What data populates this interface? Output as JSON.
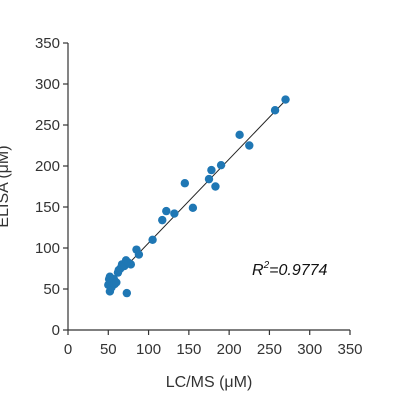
{
  "chart_data": {
    "type": "scatter",
    "xlabel": "LC/MS (μM)",
    "ylabel": "ELISA (μM)",
    "xlim": [
      0,
      350
    ],
    "ylim": [
      0,
      350
    ],
    "x_ticks": [
      "0",
      "50",
      "100",
      "150",
      "200",
      "250",
      "300",
      "350"
    ],
    "y_ticks": [
      "0",
      "50",
      "100",
      "150",
      "200",
      "250",
      "300",
      "350"
    ],
    "grid": false,
    "marker_color": "#1f77b4",
    "trendline": {
      "x": [
        50,
        270
      ],
      "y": [
        55,
        280
      ]
    },
    "annotation": {
      "prefix": "R",
      "superscript": "2",
      "text": "=0.9774"
    },
    "series": [
      {
        "x": [
          50,
          51,
          52,
          52,
          53,
          54,
          55,
          57,
          58,
          60,
          62,
          63,
          65,
          67,
          70,
          72,
          73,
          75,
          78,
          85,
          88,
          105,
          117,
          122,
          132,
          145,
          155,
          175,
          178,
          183,
          190,
          213,
          225,
          257,
          270
        ],
        "y": [
          55,
          62,
          65,
          47,
          60,
          52,
          58,
          62,
          56,
          58,
          70,
          73,
          75,
          80,
          78,
          85,
          45,
          82,
          80,
          98,
          92,
          110,
          134,
          145,
          142,
          179,
          149,
          184,
          195,
          175,
          201,
          238,
          225,
          268,
          281
        ]
      }
    ]
  }
}
